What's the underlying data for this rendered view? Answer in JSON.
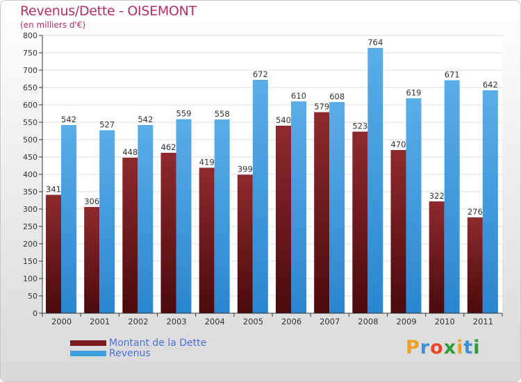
{
  "header": {
    "title": "Revenus/Dette - OISEMONT",
    "subtitle": "(en milliers d'€)"
  },
  "colors": {
    "debt": "#7a1c1f",
    "revenue": "#3d9ee0",
    "title": "#b0306a",
    "legend_text": "#4a6fd8"
  },
  "legend": {
    "debt_label": "Montant de la Dette",
    "revenue_label": "Revenus"
  },
  "logo": {
    "text": "Proxiti",
    "letters": [
      "P",
      "r",
      "o",
      "x",
      "i",
      "t",
      "i"
    ],
    "letter_colors": [
      "#f0a020",
      "#3a8fd8",
      "#e8452a",
      "#2e9c3a",
      "#f0a020",
      "#3a8fd8",
      "#2e9c3a"
    ]
  },
  "chart_data": {
    "type": "bar",
    "title": "Revenus/Dette - OISEMONT",
    "ylabel": "(en milliers d'€)",
    "xlabel": "",
    "ylim": [
      0,
      800
    ],
    "yticks": [
      0,
      50,
      100,
      150,
      200,
      250,
      300,
      350,
      400,
      450,
      500,
      550,
      600,
      650,
      700,
      750,
      800
    ],
    "grid": true,
    "legend_position": "bottom-left",
    "categories": [
      "2000",
      "2001",
      "2002",
      "2003",
      "2004",
      "2005",
      "2006",
      "2007",
      "2008",
      "2009",
      "2010",
      "2011"
    ],
    "series": [
      {
        "name": "Montant de la Dette",
        "values": [
          341,
          306,
          448,
          462,
          419,
          399,
          540,
          579,
          523,
          470,
          322,
          276
        ]
      },
      {
        "name": "Revenus",
        "values": [
          542,
          527,
          542,
          559,
          558,
          672,
          610,
          608,
          764,
          619,
          671,
          642
        ]
      }
    ]
  }
}
